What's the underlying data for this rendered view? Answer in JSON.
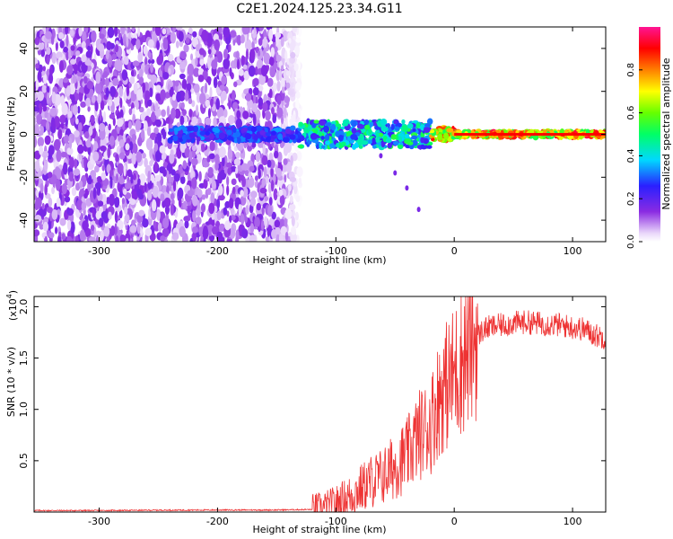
{
  "title": "C2E1.2024.125.23.34.G11",
  "chart_data": [
    {
      "type": "heatmap",
      "xlabel": "Height of straight line (km)",
      "ylabel": "Frequency (Hz)",
      "xlim": [
        -355,
        128
      ],
      "ylim": [
        -50,
        50
      ],
      "xticks": [
        -300,
        -200,
        -100,
        0,
        100
      ],
      "yticks": [
        40,
        20,
        0,
        -20,
        -40
      ],
      "colorbar": {
        "label": "Normalized spectral amplitude",
        "range": [
          0.0,
          1.0
        ],
        "ticks": [
          0.0,
          0.2,
          0.4,
          0.6,
          0.8
        ],
        "colormap": "rainbow (white-purple-blue-cyan-green-yellow-red-magenta)"
      },
      "features": {
        "noise_region_x": [
          -355,
          -130
        ],
        "carrier_band_x": [
          -240,
          128
        ],
        "carrier_frequency_hz": 0,
        "sideband_streak": [
          [
            -62,
            -10
          ],
          [
            -50,
            -18
          ],
          [
            -40,
            -25
          ],
          [
            -30,
            -35
          ]
        ]
      },
      "grid": false
    },
    {
      "type": "line",
      "xlabel": "Height of straight line (km)",
      "ylabel": "SNR (10 * v/v)",
      "yscale_label": "(x10^4)",
      "xlim": [
        -355,
        128
      ],
      "ylim": [
        0,
        2.1
      ],
      "xticks": [
        -300,
        -200,
        -100,
        0,
        100
      ],
      "yticks": [
        0.5,
        1.0,
        1.5,
        2.0
      ],
      "series": [
        {
          "color": "#ee3333",
          "x": [
            -355,
            -300,
            -250,
            -200,
            -150,
            -120,
            -110,
            -100,
            -90,
            -80,
            -70,
            -60,
            -50,
            -40,
            -30,
            -20,
            -15,
            -10,
            -5,
            0,
            5,
            10,
            15,
            20,
            25,
            30,
            40,
            50,
            60,
            70,
            80,
            90,
            100,
            110,
            120,
            128
          ],
          "values": [
            0.015,
            0.015,
            0.018,
            0.02,
            0.02,
            0.025,
            0.04,
            0.08,
            0.14,
            0.22,
            0.3,
            0.35,
            0.45,
            0.55,
            0.75,
            0.85,
            1.05,
            1.2,
            1.25,
            1.35,
            1.45,
            1.55,
            1.65,
            1.72,
            1.78,
            1.8,
            1.82,
            1.84,
            1.85,
            1.84,
            1.83,
            1.82,
            1.8,
            1.78,
            1.72,
            1.7
          ]
        }
      ],
      "grid": false
    }
  ]
}
